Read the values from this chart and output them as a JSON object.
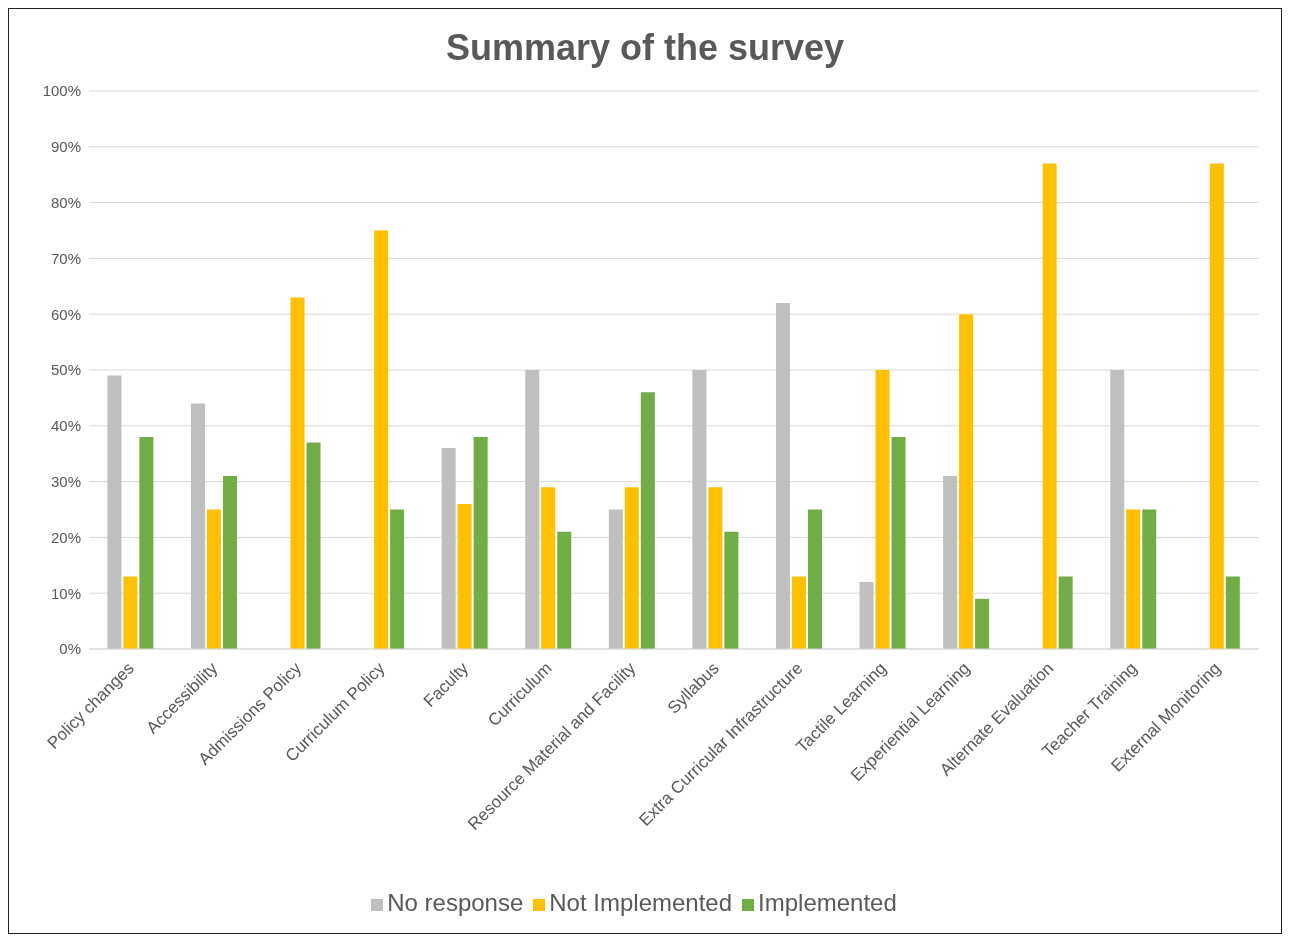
{
  "chart_data": {
    "type": "bar",
    "title": "Summary of the survey",
    "categories": [
      "Policy changes",
      "Accessibility",
      "Admissions Policy",
      "Curriculum Policy",
      "Faculty",
      "Curriculum",
      "Resource Material and Facility",
      "Syllabus",
      "Extra Curricular Infrastructure",
      "Tactile Learning",
      "Experiential Learning",
      "Alternate Evaluation",
      "Teacher Training",
      "External Monitoring"
    ],
    "series": [
      {
        "name": "No response",
        "color": "#bfbfbf",
        "values": [
          49,
          44,
          0,
          0,
          36,
          50,
          25,
          50,
          62,
          12,
          31,
          0,
          50,
          0
        ]
      },
      {
        "name": "Not Implemented",
        "color": "#ffc000",
        "values": [
          13,
          25,
          63,
          75,
          26,
          29,
          29,
          29,
          13,
          50,
          60,
          87,
          25,
          87
        ]
      },
      {
        "name": "Implemented",
        "color": "#70ad47",
        "values": [
          38,
          31,
          37,
          25,
          38,
          21,
          46,
          21,
          25,
          38,
          9,
          13,
          25,
          13
        ]
      }
    ],
    "ylim": [
      0,
      100
    ],
    "yticks": [
      {
        "value": 0,
        "label": "0%"
      },
      {
        "value": 10,
        "label": "10%"
      },
      {
        "value": 20,
        "label": "20%"
      },
      {
        "value": 30,
        "label": "30%"
      },
      {
        "value": 40,
        "label": "40%"
      },
      {
        "value": 50,
        "label": "50%"
      },
      {
        "value": 60,
        "label": "60%"
      },
      {
        "value": 70,
        "label": "70%"
      },
      {
        "value": 80,
        "label": "80%"
      },
      {
        "value": 90,
        "label": "90%"
      },
      {
        "value": 100,
        "label": "100%"
      }
    ],
    "grid": "y",
    "legend": "bottom"
  }
}
